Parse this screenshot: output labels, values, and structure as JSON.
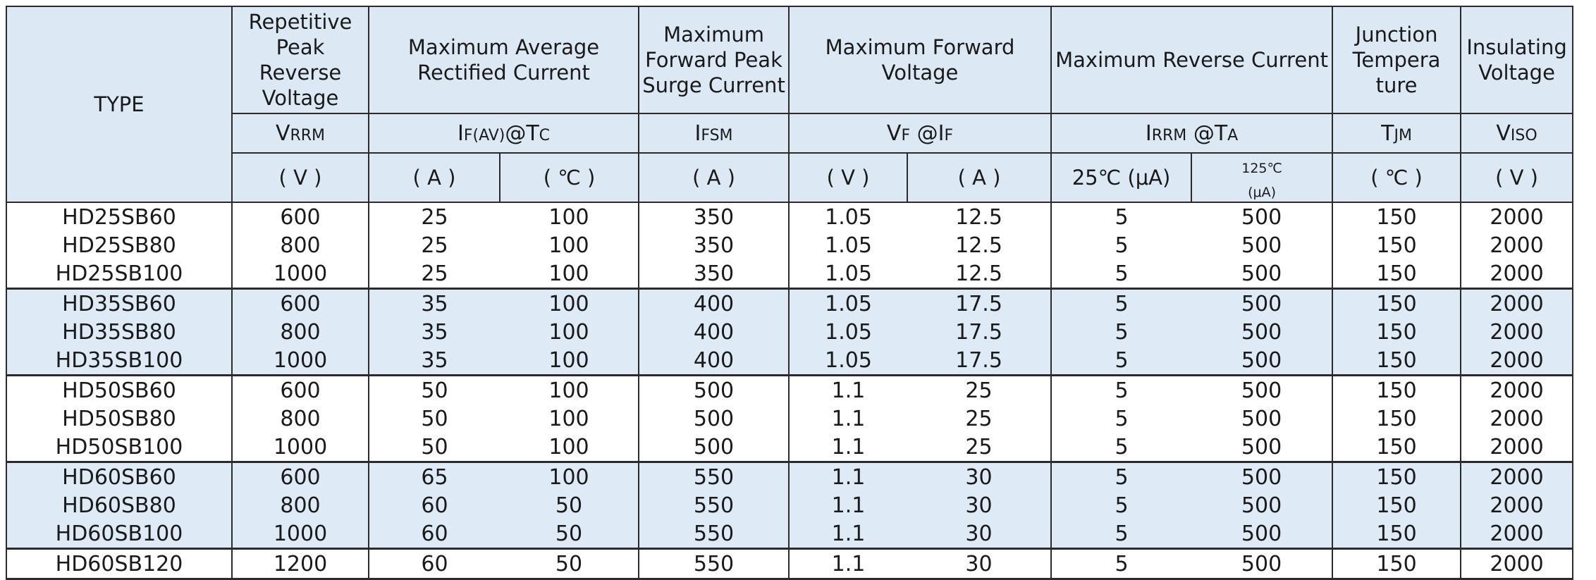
{
  "header": {
    "type": "TYPE",
    "vrrm_title": "Repetitive Peak Reverse Voltage",
    "ifav_title": "Maximum Average Rectified Current",
    "ifsm_title": "Maximum Forward Peak Surge Current",
    "vf_title": "Maximum Forward Voltage",
    "irrm_title": "Maximum Reverse Current",
    "tjm_title": "Junction Tempera ture",
    "viso_title": "Insulating Voltage",
    "sym_vrrm_main": "V",
    "sym_vrrm_sub": "RRM",
    "sym_ifav_main": "I",
    "sym_ifav_sub": "F(AV)",
    "sym_ifav_at": "@T",
    "sym_ifav_at_sub": "C",
    "sym_ifsm_main": "I",
    "sym_ifsm_sub": "FSM",
    "sym_vf_main": "V",
    "sym_vf_sub": "F",
    "sym_vf_at": " @I",
    "sym_vf_at_sub": "F",
    "sym_irrm_main": "I",
    "sym_irrm_sub": "RRM",
    "sym_irrm_at": " @T",
    "sym_irrm_at_sub": "A",
    "sym_tjm_main": "T",
    "sym_tjm_sub": "JM",
    "sym_viso_main": "V",
    "sym_viso_sub": "ISO",
    "unit_v": "( V )",
    "unit_a": "( A )",
    "unit_c": "( ℃ )",
    "unit_a2": "( A )",
    "unit_v2": "( V )",
    "unit_a3": "( A )",
    "unit_25": "25℃ (μA)",
    "unit_125_a": "125℃",
    "unit_125_b": "(μA)",
    "unit_tj": "( ℃ )",
    "unit_viso": "( V )"
  },
  "rows": [
    [
      "HD25SB60",
      "600",
      "25",
      "100",
      "350",
      "1.05",
      "12.5",
      "5",
      "500",
      "150",
      "2000"
    ],
    [
      "HD25SB80",
      "800",
      "25",
      "100",
      "350",
      "1.05",
      "12.5",
      "5",
      "500",
      "150",
      "2000"
    ],
    [
      "HD25SB100",
      "1000",
      "25",
      "100",
      "350",
      "1.05",
      "12.5",
      "5",
      "500",
      "150",
      "2000"
    ],
    [
      "HD35SB60",
      "600",
      "35",
      "100",
      "400",
      "1.05",
      "17.5",
      "5",
      "500",
      "150",
      "2000"
    ],
    [
      "HD35SB80",
      "800",
      "35",
      "100",
      "400",
      "1.05",
      "17.5",
      "5",
      "500",
      "150",
      "2000"
    ],
    [
      "HD35SB100",
      "1000",
      "35",
      "100",
      "400",
      "1.05",
      "17.5",
      "5",
      "500",
      "150",
      "2000"
    ],
    [
      "HD50SB60",
      "600",
      "50",
      "100",
      "500",
      "1.1",
      "25",
      "5",
      "500",
      "150",
      "2000"
    ],
    [
      "HD50SB80",
      "800",
      "50",
      "100",
      "500",
      "1.1",
      "25",
      "5",
      "500",
      "150",
      "2000"
    ],
    [
      "HD50SB100",
      "1000",
      "50",
      "100",
      "500",
      "1.1",
      "25",
      "5",
      "500",
      "150",
      "2000"
    ],
    [
      "HD60SB60",
      "600",
      "65",
      "100",
      "550",
      "1.1",
      "30",
      "5",
      "500",
      "150",
      "2000"
    ],
    [
      "HD60SB80",
      "800",
      "60",
      "50",
      "550",
      "1.1",
      "30",
      "5",
      "500",
      "150",
      "2000"
    ],
    [
      "HD60SB100",
      "1000",
      "60",
      "50",
      "550",
      "1.1",
      "30",
      "5",
      "500",
      "150",
      "2000"
    ],
    [
      "HD60SB120",
      "1200",
      "60",
      "50",
      "550",
      "1.1",
      "30",
      "5",
      "500",
      "150",
      "2000"
    ]
  ],
  "colors": {
    "header_bg": "#dce9f5",
    "stripe_bg": "#deebf6",
    "border": "#2b2b2b"
  }
}
